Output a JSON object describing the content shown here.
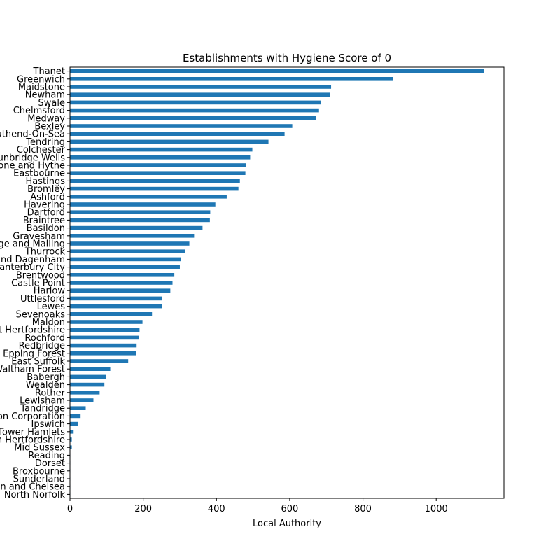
{
  "chart_data": {
    "type": "bar",
    "orientation": "horizontal",
    "title": "Establishments with Hygiene Score of 0",
    "xlabel": "Local Authority",
    "ylabel": "",
    "xlim": [
      0,
      1185
    ],
    "xticks": [
      0,
      200,
      400,
      600,
      800,
      1000
    ],
    "bar_color": "#1f77b4",
    "grid": false,
    "legend": "none",
    "categories": [
      "Thanet",
      "Greenwich",
      "Maidstone",
      "Newham",
      "Swale",
      "Chelmsford",
      "Medway",
      "Bexley",
      "Southend-On-Sea",
      "Tendring",
      "Colchester",
      "Tunbridge Wells",
      "Folkestone and Hythe",
      "Eastbourne",
      "Hastings",
      "Bromley",
      "Ashford",
      "Havering",
      "Dartford",
      "Braintree",
      "Basildon",
      "Gravesham",
      "Tonbridge and Malling",
      "Thurrock",
      "Barking and Dagenham",
      "Canterbury City",
      "Brentwood",
      "Castle Point",
      "Harlow",
      "Uttlesford",
      "Lewes",
      "Sevenoaks",
      "Maldon",
      "East Hertfordshire",
      "Rochford",
      "Redbridge",
      "Epping Forest",
      "East Suffolk",
      "Waltham Forest",
      "Babergh",
      "Wealden",
      "Rother",
      "Lewisham",
      "Tandridge",
      "City of London Corporation",
      "Ipswich",
      "Tower Hamlets",
      "North Hertfordshire",
      "Mid Sussex",
      "Reading",
      "Dorset",
      "Broxbourne",
      "Sunderland",
      "Kensington and Chelsea",
      "North Norfolk"
    ],
    "values": [
      1130,
      883,
      713,
      711,
      686,
      680,
      672,
      607,
      586,
      542,
      498,
      492,
      481,
      479,
      464,
      460,
      428,
      397,
      383,
      382,
      362,
      339,
      326,
      314,
      302,
      300,
      285,
      280,
      274,
      252,
      251,
      224,
      198,
      190,
      188,
      182,
      180,
      159,
      110,
      98,
      94,
      81,
      64,
      43,
      29,
      21,
      10,
      5,
      5,
      1,
      1,
      1,
      1,
      1,
      1
    ]
  }
}
